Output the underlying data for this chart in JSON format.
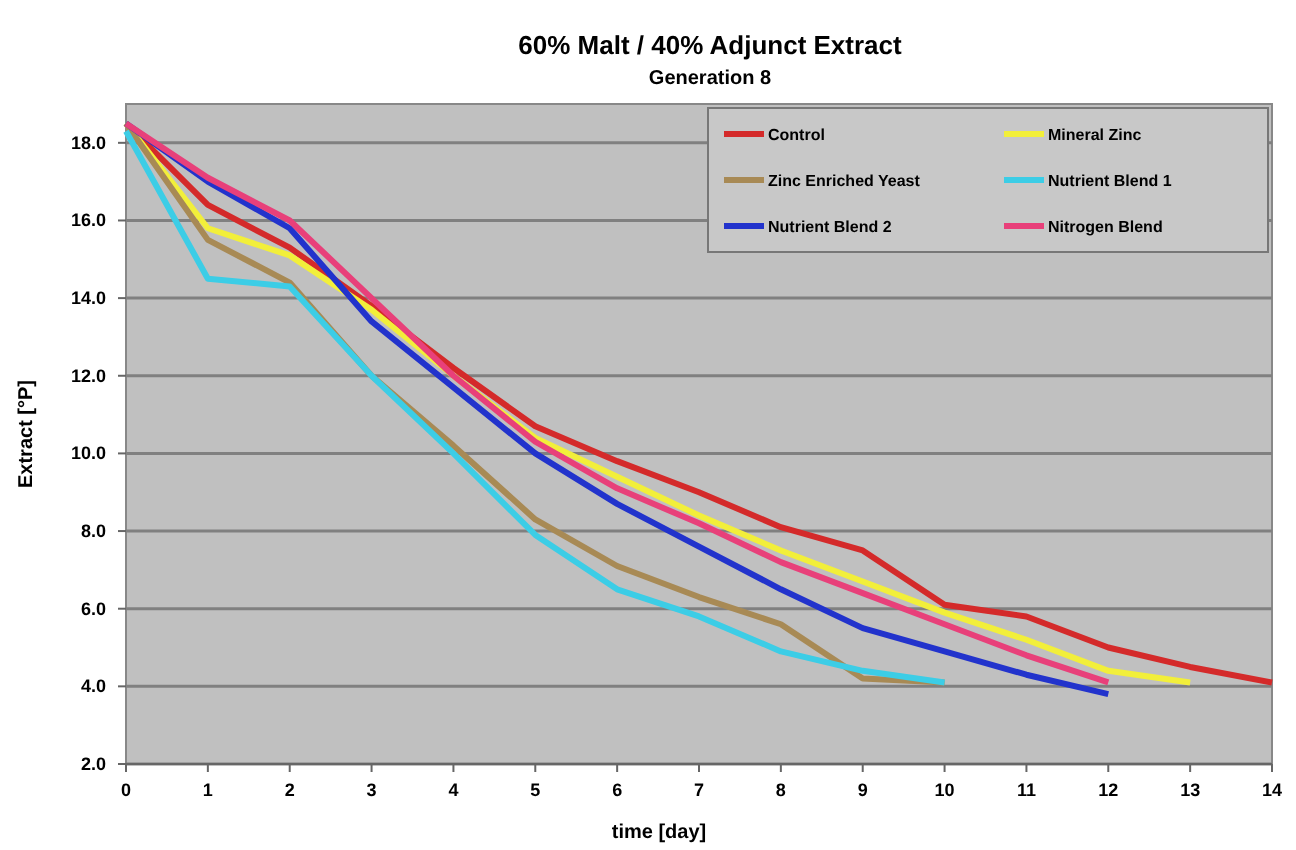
{
  "chart_data": {
    "type": "line",
    "title": "60% Malt / 40% Adjunct Extract",
    "subtitle": "Generation 8",
    "xlabel": "time [day]",
    "ylabel": "Extract [°P]",
    "x": [
      0,
      1,
      2,
      3,
      4,
      5,
      6,
      7,
      8,
      9,
      10,
      11,
      12,
      13,
      14
    ],
    "xlim": [
      0,
      14
    ],
    "xticks": [
      0,
      1,
      2,
      3,
      4,
      5,
      6,
      7,
      8,
      9,
      10,
      11,
      12,
      13,
      14
    ],
    "ylim": [
      2,
      19
    ],
    "yticks": [
      {
        "value": 2,
        "label": "2.0"
      },
      {
        "value": 4,
        "label": "4.0"
      },
      {
        "value": 6,
        "label": "6.0"
      },
      {
        "value": 8,
        "label": "8.0"
      },
      {
        "value": 10,
        "label": "10.0"
      },
      {
        "value": 12,
        "label": "12.0"
      },
      {
        "value": 14,
        "label": "14.0"
      },
      {
        "value": 16,
        "label": "16.0"
      },
      {
        "value": 18,
        "label": "18.0"
      }
    ],
    "grid": "y",
    "legend": "top right",
    "line_style": "solid",
    "marker": "none",
    "series": [
      {
        "name": "Control",
        "color": "#d42a2a",
        "values": [
          18.5,
          16.4,
          15.3,
          13.8,
          12.2,
          10.7,
          9.8,
          9.0,
          8.1,
          7.5,
          6.1,
          5.8,
          5.0,
          4.5,
          4.1
        ]
      },
      {
        "name": "Mineral Zinc",
        "color": "#f2ef3a",
        "values": [
          18.5,
          15.8,
          15.1,
          13.7,
          12.0,
          10.4,
          9.4,
          8.4,
          7.5,
          6.7,
          5.9,
          5.2,
          4.4,
          4.1,
          null
        ]
      },
      {
        "name": "Zinc Enriched Yeast",
        "color": "#a88a55",
        "values": [
          18.5,
          15.5,
          14.4,
          12.0,
          10.2,
          8.3,
          7.1,
          6.3,
          5.6,
          4.2,
          4.1,
          null,
          null,
          null,
          null
        ]
      },
      {
        "name": "Nutrient Blend 1",
        "color": "#3ccde6",
        "values": [
          18.3,
          14.5,
          14.3,
          12.0,
          10.0,
          7.9,
          6.5,
          5.8,
          4.9,
          4.4,
          4.1,
          null,
          null,
          null,
          null
        ]
      },
      {
        "name": "Nutrient Blend 2",
        "color": "#2233cc",
        "values": [
          18.5,
          17.0,
          15.8,
          13.4,
          11.7,
          10.0,
          8.7,
          7.6,
          6.5,
          5.5,
          4.9,
          4.3,
          3.8,
          null,
          null
        ]
      },
      {
        "name": "Nitrogen Blend",
        "color": "#e8407a",
        "values": [
          18.5,
          17.1,
          16.0,
          14.0,
          12.0,
          10.3,
          9.1,
          8.2,
          7.2,
          6.4,
          5.6,
          4.8,
          4.1,
          null,
          null
        ]
      }
    ]
  }
}
